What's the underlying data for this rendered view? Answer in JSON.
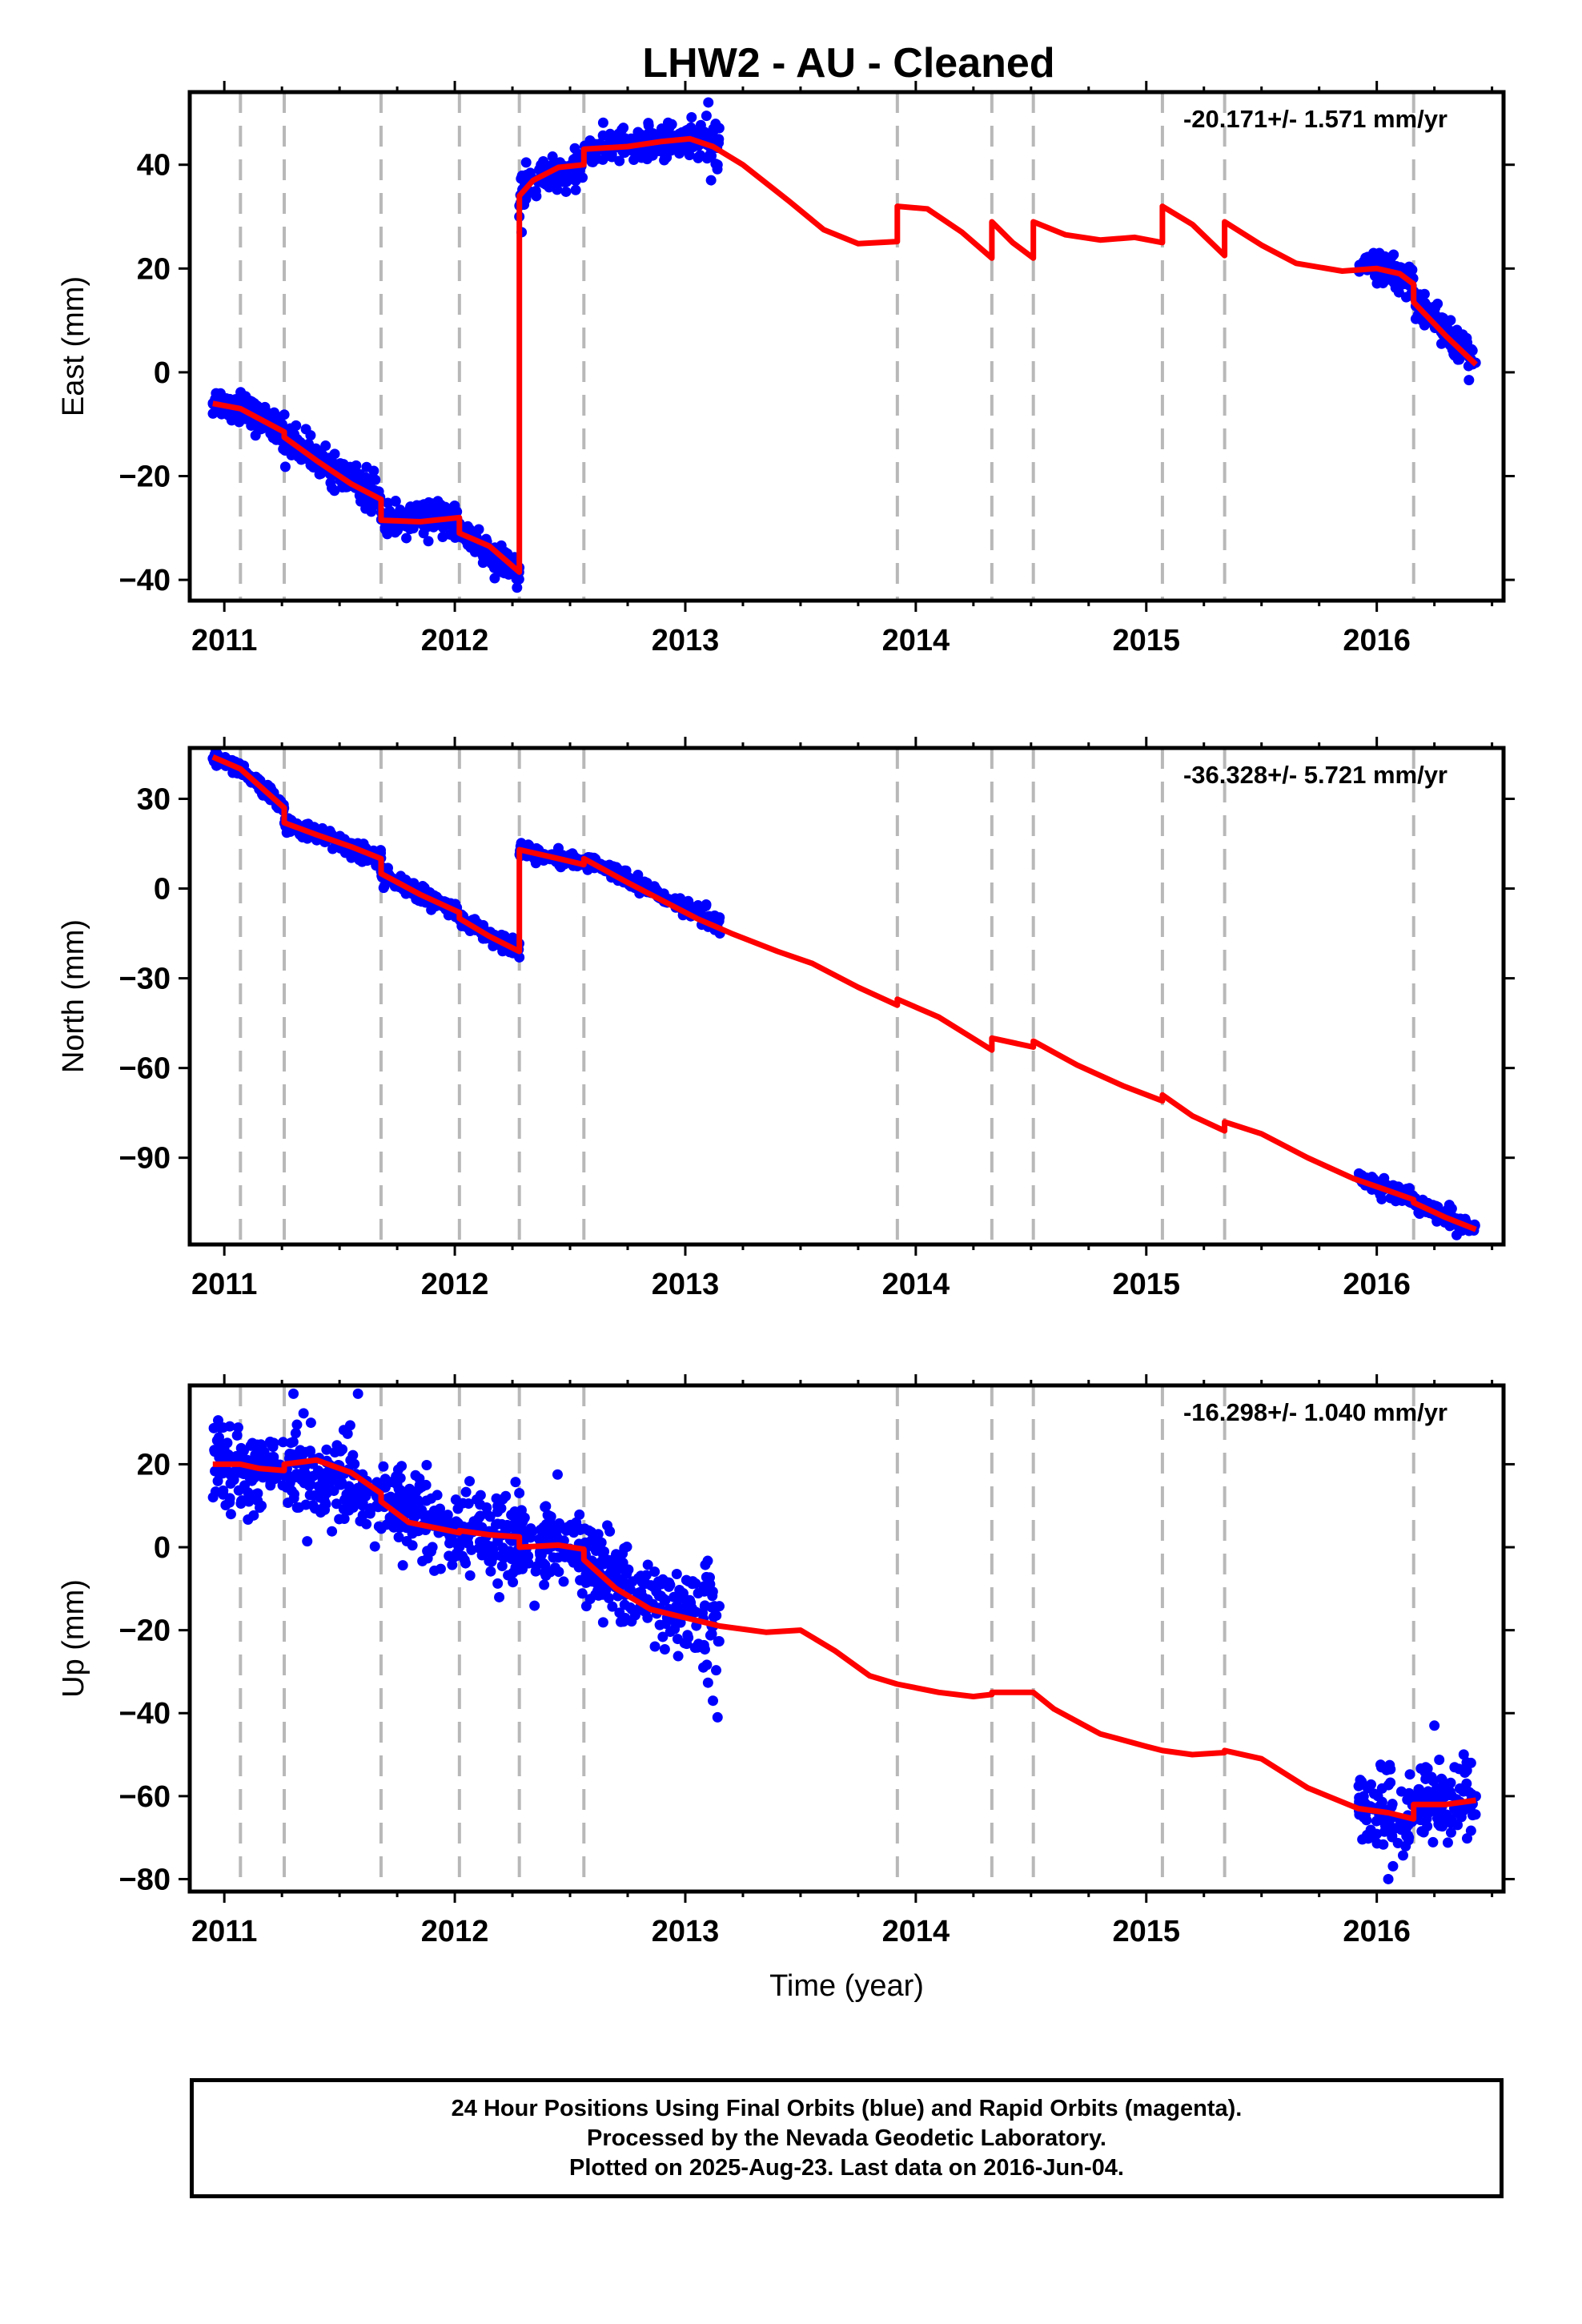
{
  "title": "LHW2  - AU - Cleaned",
  "colors": {
    "points": "#0000ff",
    "model": "#ff0000",
    "breaks": "#b8b8b8"
  },
  "caption": {
    "line1": "24 Hour Positions Using Final Orbits (blue) and Rapid Orbits (magenta).",
    "line2": "Processed by the Nevada Geodetic Laboratory.",
    "line3": "Plotted on 2025-Aug-23. Last data on 2016-Jun-04."
  },
  "chart_data": [
    {
      "type": "scatter",
      "panel": "east",
      "ylabel": "East (mm)",
      "xlabel": "",
      "rate": "-20.171+/- 1.571 mm/yr",
      "xlim": [
        2010.85,
        2016.55
      ],
      "ylim": [
        -44,
        54
      ],
      "xticks": [
        2011,
        2012,
        2013,
        2014,
        2015,
        2016
      ],
      "yticks": [
        40,
        20,
        0,
        -20,
        -40
      ],
      "yticklabels": [
        "40",
        "20",
        "0",
        "−20",
        "−40"
      ],
      "breaks": [
        2011.07,
        2011.26,
        2011.68,
        2012.02,
        2012.28,
        2012.56,
        2013.92,
        2014.33,
        2014.51,
        2015.07,
        2015.34,
        2016.16
      ],
      "model": [
        [
          2010.95,
          -6
        ],
        [
          2011.07,
          -7
        ],
        [
          2011.26,
          -11.5
        ],
        [
          2011.26,
          -12.5
        ],
        [
          2011.4,
          -17
        ],
        [
          2011.55,
          -21.5
        ],
        [
          2011.68,
          -24.5
        ],
        [
          2011.68,
          -28.5
        ],
        [
          2011.85,
          -28.8
        ],
        [
          2012.02,
          -28
        ],
        [
          2012.02,
          -31
        ],
        [
          2012.15,
          -33.5
        ],
        [
          2012.28,
          -38.5
        ],
        [
          2012.28,
          34
        ],
        [
          2012.34,
          37
        ],
        [
          2012.45,
          39.5
        ],
        [
          2012.56,
          40
        ],
        [
          2012.56,
          43
        ],
        [
          2012.75,
          43.5
        ],
        [
          2012.9,
          44.5
        ],
        [
          2013.02,
          45
        ],
        [
          2013.12,
          43.5
        ],
        [
          2013.25,
          40
        ],
        [
          2013.45,
          33
        ],
        [
          2013.6,
          27.5
        ],
        [
          2013.75,
          24.8
        ],
        [
          2013.92,
          25.2
        ],
        [
          2013.92,
          32
        ],
        [
          2014.05,
          31.5
        ],
        [
          2014.2,
          27
        ],
        [
          2014.33,
          22
        ],
        [
          2014.33,
          29
        ],
        [
          2014.42,
          25
        ],
        [
          2014.51,
          22
        ],
        [
          2014.51,
          29
        ],
        [
          2014.65,
          26.5
        ],
        [
          2014.8,
          25.5
        ],
        [
          2014.95,
          26
        ],
        [
          2015.07,
          25
        ],
        [
          2015.07,
          32
        ],
        [
          2015.2,
          28.5
        ],
        [
          2015.34,
          22.5
        ],
        [
          2015.34,
          29
        ],
        [
          2015.5,
          24.5
        ],
        [
          2015.65,
          21
        ],
        [
          2015.85,
          19.5
        ],
        [
          2016.0,
          20
        ],
        [
          2016.1,
          19
        ],
        [
          2016.16,
          17
        ],
        [
          2016.16,
          13.5
        ],
        [
          2016.3,
          7
        ],
        [
          2016.43,
          1.5
        ]
      ],
      "segments": [
        {
          "x0": 2010.95,
          "x1": 2011.07,
          "y0": -5.5,
          "y1": -7,
          "s": 1.5,
          "n": 50
        },
        {
          "x0": 2011.07,
          "x1": 2011.26,
          "y0": -7,
          "y1": -11.5,
          "s": 1.5,
          "n": 80
        },
        {
          "x0": 2011.26,
          "x1": 2011.68,
          "y0": -12.5,
          "y1": -24.5,
          "s": 1.6,
          "n": 170
        },
        {
          "x0": 2011.68,
          "x1": 2012.02,
          "y0": -28.5,
          "y1": -28,
          "s": 1.5,
          "n": 140
        },
        {
          "x0": 2012.02,
          "x1": 2012.28,
          "y0": -31,
          "y1": -38.5,
          "s": 1.5,
          "n": 110
        },
        {
          "x0": 2012.28,
          "x1": 2012.56,
          "y0": 35,
          "y1": 40,
          "s": 1.6,
          "n": 110
        },
        {
          "x0": 2012.56,
          "x1": 2013.02,
          "y0": 43,
          "y1": 45,
          "s": 1.5,
          "n": 190
        },
        {
          "x0": 2013.02,
          "x1": 2013.15,
          "y0": 45,
          "y1": 45,
          "s": 2.8,
          "n": 45
        },
        {
          "x0": 2015.92,
          "x1": 2016.16,
          "y0": 21,
          "y1": 18,
          "s": 1.5,
          "n": 95
        },
        {
          "x0": 2016.16,
          "x1": 2016.43,
          "y0": 14,
          "y1": 1.5,
          "s": 1.8,
          "n": 105
        }
      ],
      "outliers": [
        [
          2012.27,
          -41.5
        ],
        [
          2012.28,
          30
        ],
        [
          2012.29,
          27
        ],
        [
          2013.1,
          52
        ],
        [
          2013.14,
          40
        ],
        [
          2016.4,
          -1.5
        ]
      ]
    },
    {
      "type": "scatter",
      "panel": "north",
      "ylabel": "North (mm)",
      "xlabel": "",
      "rate": "-36.328+/- 5.721 mm/yr",
      "xlim": [
        2010.85,
        2016.55
      ],
      "ylim": [
        -119,
        47
      ],
      "xticks": [
        2011,
        2012,
        2013,
        2014,
        2015,
        2016
      ],
      "yticks": [
        30,
        0,
        -30,
        -60,
        -90
      ],
      "yticklabels": [
        "30",
        "0",
        "−30",
        "−60",
        "−90"
      ],
      "breaks": [
        2011.07,
        2011.26,
        2011.68,
        2012.02,
        2012.28,
        2012.56,
        2013.92,
        2014.33,
        2014.51,
        2015.07,
        2015.34,
        2016.16
      ],
      "model": [
        [
          2010.95,
          44
        ],
        [
          2011.07,
          40
        ],
        [
          2011.26,
          27
        ],
        [
          2011.26,
          22
        ],
        [
          2011.4,
          18
        ],
        [
          2011.55,
          14
        ],
        [
          2011.68,
          10
        ],
        [
          2011.68,
          5
        ],
        [
          2011.85,
          -2
        ],
        [
          2012.02,
          -8
        ],
        [
          2012.02,
          -10
        ],
        [
          2012.15,
          -16
        ],
        [
          2012.28,
          -21
        ],
        [
          2012.28,
          13
        ],
        [
          2012.45,
          10
        ],
        [
          2012.56,
          8
        ],
        [
          2012.56,
          10
        ],
        [
          2012.75,
          2
        ],
        [
          2012.9,
          -4
        ],
        [
          2013.05,
          -10
        ],
        [
          2013.2,
          -15
        ],
        [
          2013.4,
          -21
        ],
        [
          2013.55,
          -25
        ],
        [
          2013.75,
          -33
        ],
        [
          2013.92,
          -39
        ],
        [
          2013.92,
          -37
        ],
        [
          2014.1,
          -43
        ],
        [
          2014.33,
          -54
        ],
        [
          2014.33,
          -50
        ],
        [
          2014.51,
          -53
        ],
        [
          2014.51,
          -51
        ],
        [
          2014.7,
          -59
        ],
        [
          2014.9,
          -66
        ],
        [
          2015.07,
          -71
        ],
        [
          2015.07,
          -69
        ],
        [
          2015.2,
          -76
        ],
        [
          2015.34,
          -81
        ],
        [
          2015.34,
          -78
        ],
        [
          2015.5,
          -82
        ],
        [
          2015.7,
          -90
        ],
        [
          2015.9,
          -97
        ],
        [
          2016.05,
          -101
        ],
        [
          2016.16,
          -104
        ],
        [
          2016.16,
          -105
        ],
        [
          2016.3,
          -110
        ],
        [
          2016.43,
          -114
        ]
      ],
      "segments": [
        {
          "x0": 2010.95,
          "x1": 2011.07,
          "y0": 44,
          "y1": 40,
          "s": 1.2,
          "n": 50
        },
        {
          "x0": 2011.07,
          "x1": 2011.26,
          "y0": 40,
          "y1": 27,
          "s": 1.2,
          "n": 80
        },
        {
          "x0": 2011.26,
          "x1": 2011.68,
          "y0": 22,
          "y1": 10,
          "s": 1.3,
          "n": 170
        },
        {
          "x0": 2011.68,
          "x1": 2012.02,
          "y0": 5,
          "y1": -8,
          "s": 1.3,
          "n": 140
        },
        {
          "x0": 2012.02,
          "x1": 2012.28,
          "y0": -10,
          "y1": -21,
          "s": 1.3,
          "n": 110
        },
        {
          "x0": 2012.28,
          "x1": 2012.56,
          "y0": 13,
          "y1": 8,
          "s": 1.3,
          "n": 110
        },
        {
          "x0": 2012.56,
          "x1": 2013.02,
          "y0": 10,
          "y1": -7,
          "s": 1.3,
          "n": 190
        },
        {
          "x0": 2013.02,
          "x1": 2013.15,
          "y0": -7,
          "y1": -12,
          "s": 1.8,
          "n": 45
        },
        {
          "x0": 2015.92,
          "x1": 2016.16,
          "y0": -97,
          "y1": -104,
          "s": 1.3,
          "n": 95
        },
        {
          "x0": 2016.16,
          "x1": 2016.43,
          "y0": -105,
          "y1": -114,
          "s": 1.4,
          "n": 105
        }
      ],
      "outliers": [
        [
          2012.28,
          -23
        ],
        [
          2013.15,
          -15
        ]
      ]
    },
    {
      "type": "scatter",
      "panel": "up",
      "ylabel": "Up (mm)",
      "xlabel": "Time (year)",
      "rate": "-16.298+/- 1.040 mm/yr",
      "xlim": [
        2010.85,
        2016.55
      ],
      "ylim": [
        -83,
        39
      ],
      "xticks": [
        2011,
        2012,
        2013,
        2014,
        2015,
        2016
      ],
      "yticks": [
        20,
        0,
        -20,
        -40,
        -60,
        -80
      ],
      "yticklabels": [
        "20",
        "0",
        "−20",
        "−40",
        "−60",
        "−80"
      ],
      "breaks": [
        2011.07,
        2011.26,
        2011.68,
        2012.02,
        2012.28,
        2012.56,
        2013.92,
        2014.33,
        2014.51,
        2015.07,
        2015.34,
        2016.16
      ],
      "model": [
        [
          2010.95,
          20
        ],
        [
          2011.07,
          20
        ],
        [
          2011.15,
          19
        ],
        [
          2011.26,
          18.5
        ],
        [
          2011.26,
          20
        ],
        [
          2011.4,
          21
        ],
        [
          2011.55,
          18
        ],
        [
          2011.68,
          13
        ],
        [
          2011.68,
          11
        ],
        [
          2011.8,
          6
        ],
        [
          2012.02,
          3.5
        ],
        [
          2012.02,
          4
        ],
        [
          2012.15,
          3
        ],
        [
          2012.28,
          2.5
        ],
        [
          2012.28,
          0
        ],
        [
          2012.45,
          0.5
        ],
        [
          2012.56,
          -0.5
        ],
        [
          2012.56,
          -3
        ],
        [
          2012.7,
          -10
        ],
        [
          2012.85,
          -15
        ],
        [
          2013.0,
          -17
        ],
        [
          2013.15,
          -19
        ],
        [
          2013.35,
          -20.5
        ],
        [
          2013.5,
          -20
        ],
        [
          2013.65,
          -25
        ],
        [
          2013.8,
          -31
        ],
        [
          2013.92,
          -33
        ],
        [
          2013.92,
          -33
        ],
        [
          2014.1,
          -35
        ],
        [
          2014.25,
          -36
        ],
        [
          2014.33,
          -35.5
        ],
        [
          2014.33,
          -35
        ],
        [
          2014.51,
          -35
        ],
        [
          2014.51,
          -35
        ],
        [
          2014.6,
          -39
        ],
        [
          2014.8,
          -45
        ],
        [
          2015.0,
          -48
        ],
        [
          2015.07,
          -49
        ],
        [
          2015.07,
          -49
        ],
        [
          2015.2,
          -50
        ],
        [
          2015.34,
          -49.5
        ],
        [
          2015.34,
          -49
        ],
        [
          2015.5,
          -51
        ],
        [
          2015.7,
          -58
        ],
        [
          2015.92,
          -63
        ],
        [
          2016.05,
          -64
        ],
        [
          2016.16,
          -65.5
        ],
        [
          2016.16,
          -62
        ],
        [
          2016.3,
          -62
        ],
        [
          2016.43,
          -61
        ]
      ],
      "segments": [
        {
          "x0": 2010.95,
          "x1": 2011.07,
          "y0": 20,
          "y1": 20,
          "s": 5,
          "n": 50
        },
        {
          "x0": 2011.07,
          "x1": 2011.26,
          "y0": 20,
          "y1": 18.5,
          "s": 5,
          "n": 80
        },
        {
          "x0": 2011.26,
          "x1": 2011.68,
          "y0": 20,
          "y1": 13,
          "s": 5,
          "n": 170
        },
        {
          "x0": 2011.68,
          "x1": 2012.02,
          "y0": 11,
          "y1": 3.5,
          "s": 5,
          "n": 140
        },
        {
          "x0": 2012.02,
          "x1": 2012.28,
          "y0": 4,
          "y1": 2.5,
          "s": 5,
          "n": 110
        },
        {
          "x0": 2012.28,
          "x1": 2012.56,
          "y0": 0,
          "y1": -0.5,
          "s": 5,
          "n": 110
        },
        {
          "x0": 2012.56,
          "x1": 2013.02,
          "y0": -3,
          "y1": -17,
          "s": 5,
          "n": 190
        },
        {
          "x0": 2013.02,
          "x1": 2013.15,
          "y0": -17,
          "y1": -19,
          "s": 6,
          "n": 45
        },
        {
          "x0": 2015.92,
          "x1": 2016.16,
          "y0": -63,
          "y1": -65.5,
          "s": 5,
          "n": 95
        },
        {
          "x0": 2016.16,
          "x1": 2016.43,
          "y0": -62,
          "y1": -61,
          "s": 5,
          "n": 105
        }
      ],
      "outliers": [
        [
          2011.3,
          37
        ],
        [
          2011.58,
          37
        ],
        [
          2013.14,
          -41
        ],
        [
          2013.12,
          -37
        ],
        [
          2016.05,
          -80
        ],
        [
          2016.25,
          -43
        ]
      ]
    }
  ]
}
